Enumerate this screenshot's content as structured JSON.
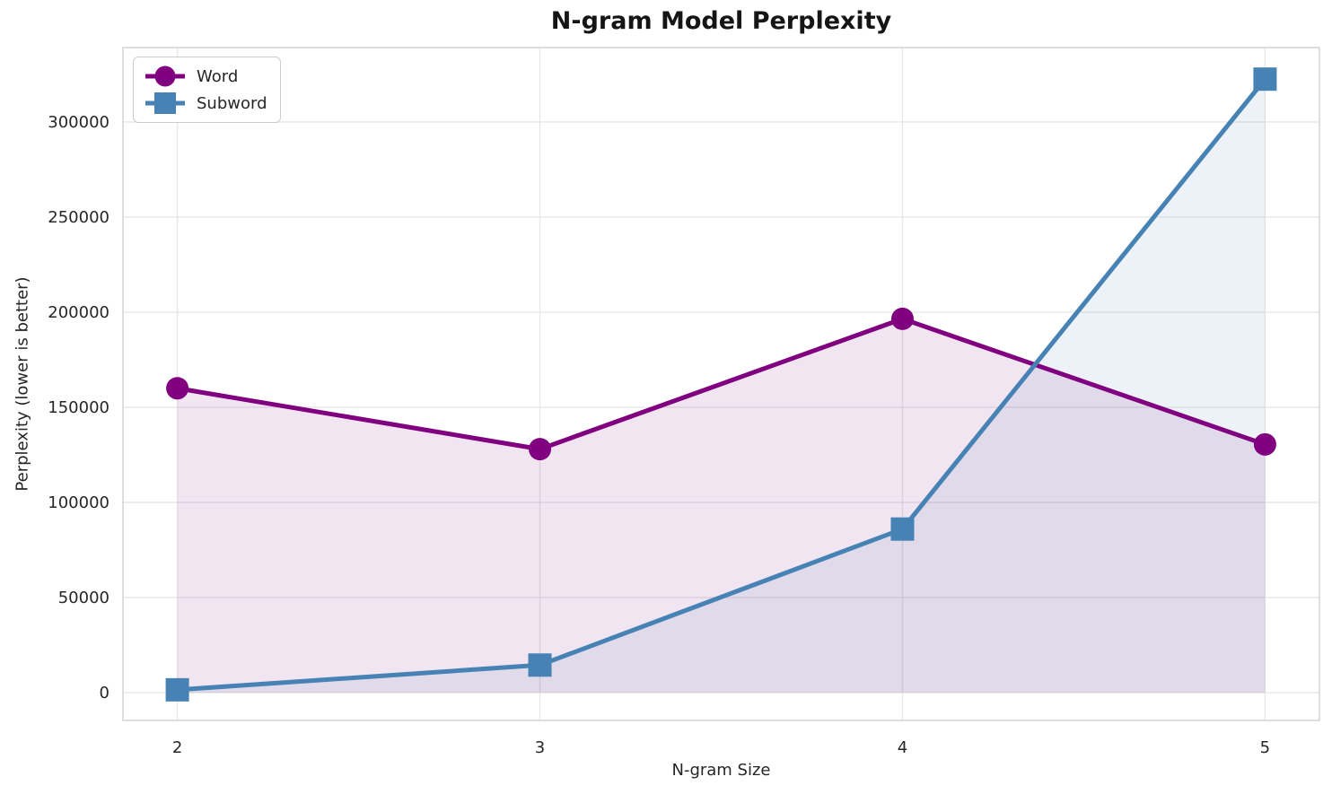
{
  "chart_data": {
    "type": "line",
    "title": "N-gram Model Perplexity",
    "xlabel": "N-gram Size",
    "ylabel": "Perplexity (lower is better)",
    "x": [
      2,
      3,
      4,
      5
    ],
    "xticks": [
      2,
      3,
      4,
      5
    ],
    "yticks": [
      0,
      50000,
      100000,
      150000,
      200000,
      250000,
      300000
    ],
    "xlim": [
      1.85,
      5.15
    ],
    "ylim": [
      -14600,
      339100
    ],
    "grid": true,
    "legend_position": "upper-left",
    "series": [
      {
        "name": "Word",
        "marker": "circle",
        "color": "#800080",
        "fill_alpha": 0.1,
        "fill_to_zero": true,
        "values": [
          160000,
          128000,
          196500,
          130500
        ]
      },
      {
        "name": "Subword",
        "marker": "square",
        "color": "#4682b4",
        "fill_alpha": 0.1,
        "fill_to_zero": true,
        "values": [
          1500,
          14500,
          86000,
          322500
        ]
      }
    ],
    "style": {
      "grid_color": "#e7e7e7",
      "spine_color": "#d4d4d4",
      "text_color": "#262626",
      "title_color": "#151515",
      "background": "#ffffff"
    }
  }
}
